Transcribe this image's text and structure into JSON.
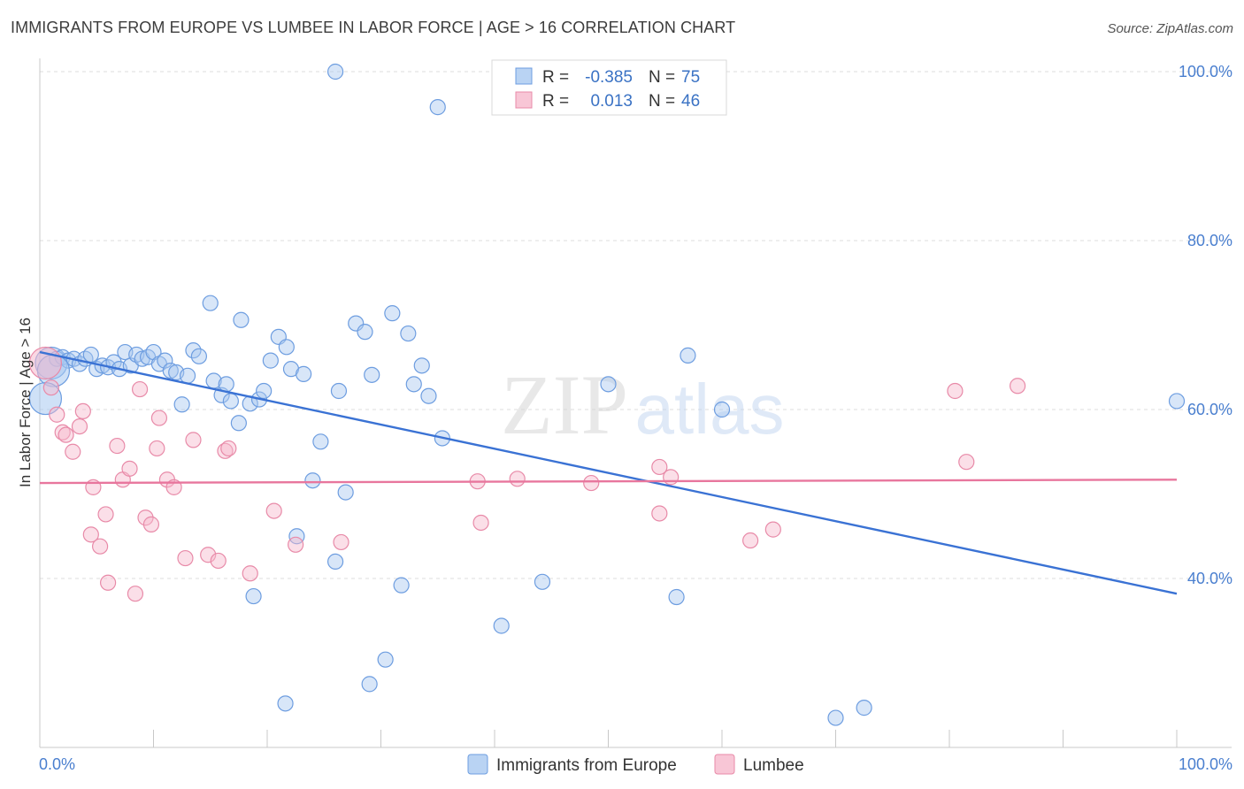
{
  "header": {
    "title": "IMMIGRANTS FROM EUROPE VS LUMBEE IN LABOR FORCE | AGE > 16 CORRELATION CHART",
    "source": "Source: ZipAtlas.com"
  },
  "watermark": {
    "zip": "ZIP",
    "atlas": "atlas"
  },
  "legend_box": {
    "rows": [
      {
        "r_label": "R =",
        "r_value": "-0.385",
        "n_label": "N =",
        "n_value": "75",
        "color": "#a8c8f0"
      },
      {
        "r_label": "R =",
        "r_value": "0.013",
        "n_label": "N =",
        "n_value": "46",
        "color": "#f6b8cc"
      }
    ]
  },
  "chart_data": {
    "type": "scatter",
    "title": "IMMIGRANTS FROM EUROPE VS LUMBEE IN LABOR FORCE | AGE > 16 CORRELATION CHART",
    "xlabel": "",
    "ylabel": "In Labor Force | Age > 16",
    "xlim": [
      0,
      100
    ],
    "ylim": [
      20,
      102
    ],
    "x_tick_labels": [
      "0.0%",
      "100.0%"
    ],
    "y_ticks": [
      40,
      60,
      80,
      100
    ],
    "y_tick_labels": [
      "40.0%",
      "60.0%",
      "80.0%",
      "100.0%"
    ],
    "grid": true,
    "legend": "top-center",
    "series": [
      {
        "name": "Immigrants from Europe",
        "color": "#a8c8f0",
        "stroke": "#6d9de0",
        "trend": {
          "x": [
            0,
            100
          ],
          "y": [
            66.8,
            38.2
          ],
          "color": "#3a72d4"
        },
        "points": [
          [
            1.0,
            65.5
          ],
          [
            1.5,
            66.0
          ],
          [
            2.0,
            66.2
          ],
          [
            2.5,
            65.8
          ],
          [
            3.0,
            66.0
          ],
          [
            3.5,
            65.4
          ],
          [
            4.0,
            66.0
          ],
          [
            4.5,
            66.5
          ],
          [
            5.0,
            64.8
          ],
          [
            5.5,
            65.2
          ],
          [
            6.0,
            65.0
          ],
          [
            6.5,
            65.6
          ],
          [
            7.0,
            64.8
          ],
          [
            7.5,
            66.8
          ],
          [
            8.0,
            65.2
          ],
          [
            8.5,
            66.5
          ],
          [
            9.0,
            66.0
          ],
          [
            9.5,
            66.2
          ],
          [
            10.0,
            66.8
          ],
          [
            10.5,
            65.4
          ],
          [
            11.0,
            65.8
          ],
          [
            11.5,
            64.6
          ],
          [
            12.0,
            64.4
          ],
          [
            12.5,
            60.6
          ],
          [
            13.0,
            64.0
          ],
          [
            13.5,
            67.0
          ],
          [
            14.0,
            66.3
          ],
          [
            15.0,
            72.6
          ],
          [
            15.3,
            63.4
          ],
          [
            16.0,
            61.7
          ],
          [
            16.4,
            63.0
          ],
          [
            16.8,
            61.0
          ],
          [
            17.5,
            58.4
          ],
          [
            17.7,
            70.6
          ],
          [
            18.5,
            60.7
          ],
          [
            19.3,
            61.2
          ],
          [
            19.7,
            62.2
          ],
          [
            20.3,
            65.8
          ],
          [
            21.0,
            68.6
          ],
          [
            21.7,
            67.4
          ],
          [
            22.1,
            64.8
          ],
          [
            23.2,
            64.2
          ],
          [
            24.0,
            51.6
          ],
          [
            24.7,
            56.2
          ],
          [
            26.3,
            62.2
          ],
          [
            26.9,
            50.2
          ],
          [
            27.8,
            70.2
          ],
          [
            28.6,
            69.2
          ],
          [
            29.2,
            64.1
          ],
          [
            31.0,
            71.4
          ],
          [
            32.4,
            69.0
          ],
          [
            32.9,
            63.0
          ],
          [
            33.6,
            65.2
          ],
          [
            34.2,
            61.6
          ],
          [
            35.4,
            56.6
          ],
          [
            22.6,
            45.0
          ],
          [
            26.0,
            42.0
          ],
          [
            31.8,
            39.2
          ],
          [
            18.8,
            37.9
          ],
          [
            21.6,
            25.2
          ],
          [
            30.4,
            30.4
          ],
          [
            29.0,
            27.5
          ],
          [
            40.6,
            34.4
          ],
          [
            44.2,
            39.6
          ],
          [
            50.0,
            63.0
          ],
          [
            56.0,
            37.8
          ],
          [
            57.0,
            66.4
          ],
          [
            60.0,
            60.0
          ],
          [
            70.0,
            23.5
          ],
          [
            72.5,
            24.7
          ],
          [
            100.0,
            61.0
          ],
          [
            26.0,
            100.0
          ],
          [
            35.0,
            95.8
          ],
          [
            1.2,
            64.6
          ],
          [
            0.5,
            61.3
          ]
        ]
      },
      {
        "name": "Lumbee",
        "color": "#f6b8cc",
        "stroke": "#e88aa8",
        "trend": {
          "x": [
            0,
            100
          ],
          "y": [
            51.3,
            51.7
          ],
          "color": "#e8769d"
        },
        "points": [
          [
            0.5,
            65.5
          ],
          [
            1.0,
            62.6
          ],
          [
            1.5,
            59.4
          ],
          [
            2.0,
            57.3
          ],
          [
            2.3,
            57.0
          ],
          [
            2.9,
            55.0
          ],
          [
            3.5,
            58.0
          ],
          [
            3.8,
            59.8
          ],
          [
            4.5,
            45.2
          ],
          [
            4.7,
            50.8
          ],
          [
            5.3,
            43.8
          ],
          [
            5.8,
            47.6
          ],
          [
            6.0,
            39.5
          ],
          [
            6.8,
            55.7
          ],
          [
            7.3,
            51.7
          ],
          [
            7.9,
            53.0
          ],
          [
            8.4,
            38.2
          ],
          [
            8.8,
            62.4
          ],
          [
            9.3,
            47.2
          ],
          [
            9.8,
            46.4
          ],
          [
            10.3,
            55.4
          ],
          [
            10.5,
            59.0
          ],
          [
            11.2,
            51.7
          ],
          [
            11.8,
            50.8
          ],
          [
            12.8,
            42.4
          ],
          [
            13.5,
            56.4
          ],
          [
            14.8,
            42.8
          ],
          [
            15.7,
            42.1
          ],
          [
            16.3,
            55.1
          ],
          [
            16.6,
            55.4
          ],
          [
            18.5,
            40.6
          ],
          [
            20.6,
            48.0
          ],
          [
            22.5,
            44.0
          ],
          [
            26.5,
            44.3
          ],
          [
            38.5,
            51.5
          ],
          [
            38.8,
            46.6
          ],
          [
            42.0,
            51.8
          ],
          [
            48.5,
            51.3
          ],
          [
            54.5,
            53.2
          ],
          [
            54.5,
            47.7
          ],
          [
            55.5,
            52.0
          ],
          [
            62.5,
            44.5
          ],
          [
            64.5,
            45.8
          ],
          [
            80.5,
            62.2
          ],
          [
            81.5,
            53.8
          ],
          [
            86.0,
            62.8
          ]
        ]
      }
    ]
  },
  "bottom_legend": [
    {
      "label": "Immigrants from Europe",
      "color": "#a8c8f0"
    },
    {
      "label": "Lumbee",
      "color": "#f6b8cc"
    }
  ]
}
